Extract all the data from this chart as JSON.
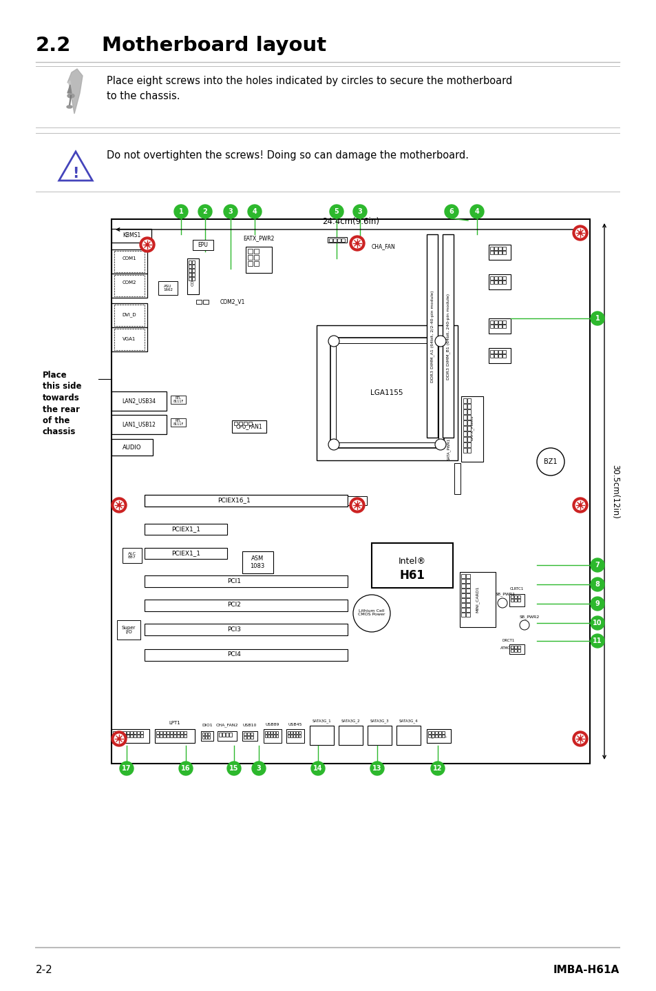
{
  "title_num": "2.2",
  "title_text": "Motherboard layout",
  "note1": "Place eight screws into the holes indicated by circles to secure the motherboard\nto the chassis.",
  "note2": "Do not overtighten the screws! Doing so can damage the motherboard.",
  "footer_left": "2-2",
  "footer_right": "IMBA-H61A",
  "bg_color": "#ffffff",
  "green_color": "#2db82d",
  "red_color": "#cc2222",
  "dim_text": "24.4cm(9.6in)",
  "dim_text2": "30.5cm(12in)"
}
